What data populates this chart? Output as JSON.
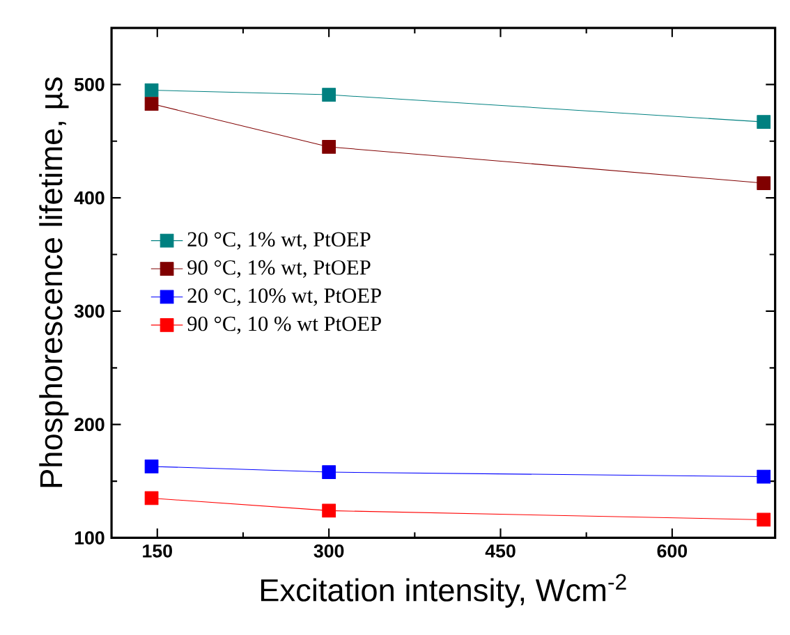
{
  "chart_data": {
    "type": "line",
    "xlabel": "Excitation intensity, Wcm$^{-2}$",
    "ylabel": "Phosphorescence lifetime, µs",
    "xlim": [
      110,
      690
    ],
    "ylim": [
      100,
      550
    ],
    "xticks": [
      150,
      300,
      450,
      600
    ],
    "yticks": [
      100,
      200,
      300,
      400,
      500
    ],
    "marker": "square",
    "line_style": "solid",
    "grid": false,
    "legend": "left",
    "series": [
      {
        "name": "20 °C, 1% wt, PtOEP",
        "color": "#008080",
        "x": [
          145,
          300,
          680
        ],
        "values": [
          495,
          491,
          467
        ]
      },
      {
        "name": "90 °C, 1% wt, PtOEP",
        "color": "#800000",
        "x": [
          145,
          300,
          680
        ],
        "values": [
          483,
          445,
          413
        ]
      },
      {
        "name": "20 °C, 10% wt, PtOEP",
        "color": "#0000ff",
        "x": [
          145,
          300,
          680
        ],
        "values": [
          163,
          158,
          154
        ]
      },
      {
        "name": "90 °C, 10 % wt PtOEP",
        "color": "#ff0000",
        "x": [
          145,
          300,
          680
        ],
        "values": [
          135,
          124,
          116
        ]
      }
    ]
  }
}
